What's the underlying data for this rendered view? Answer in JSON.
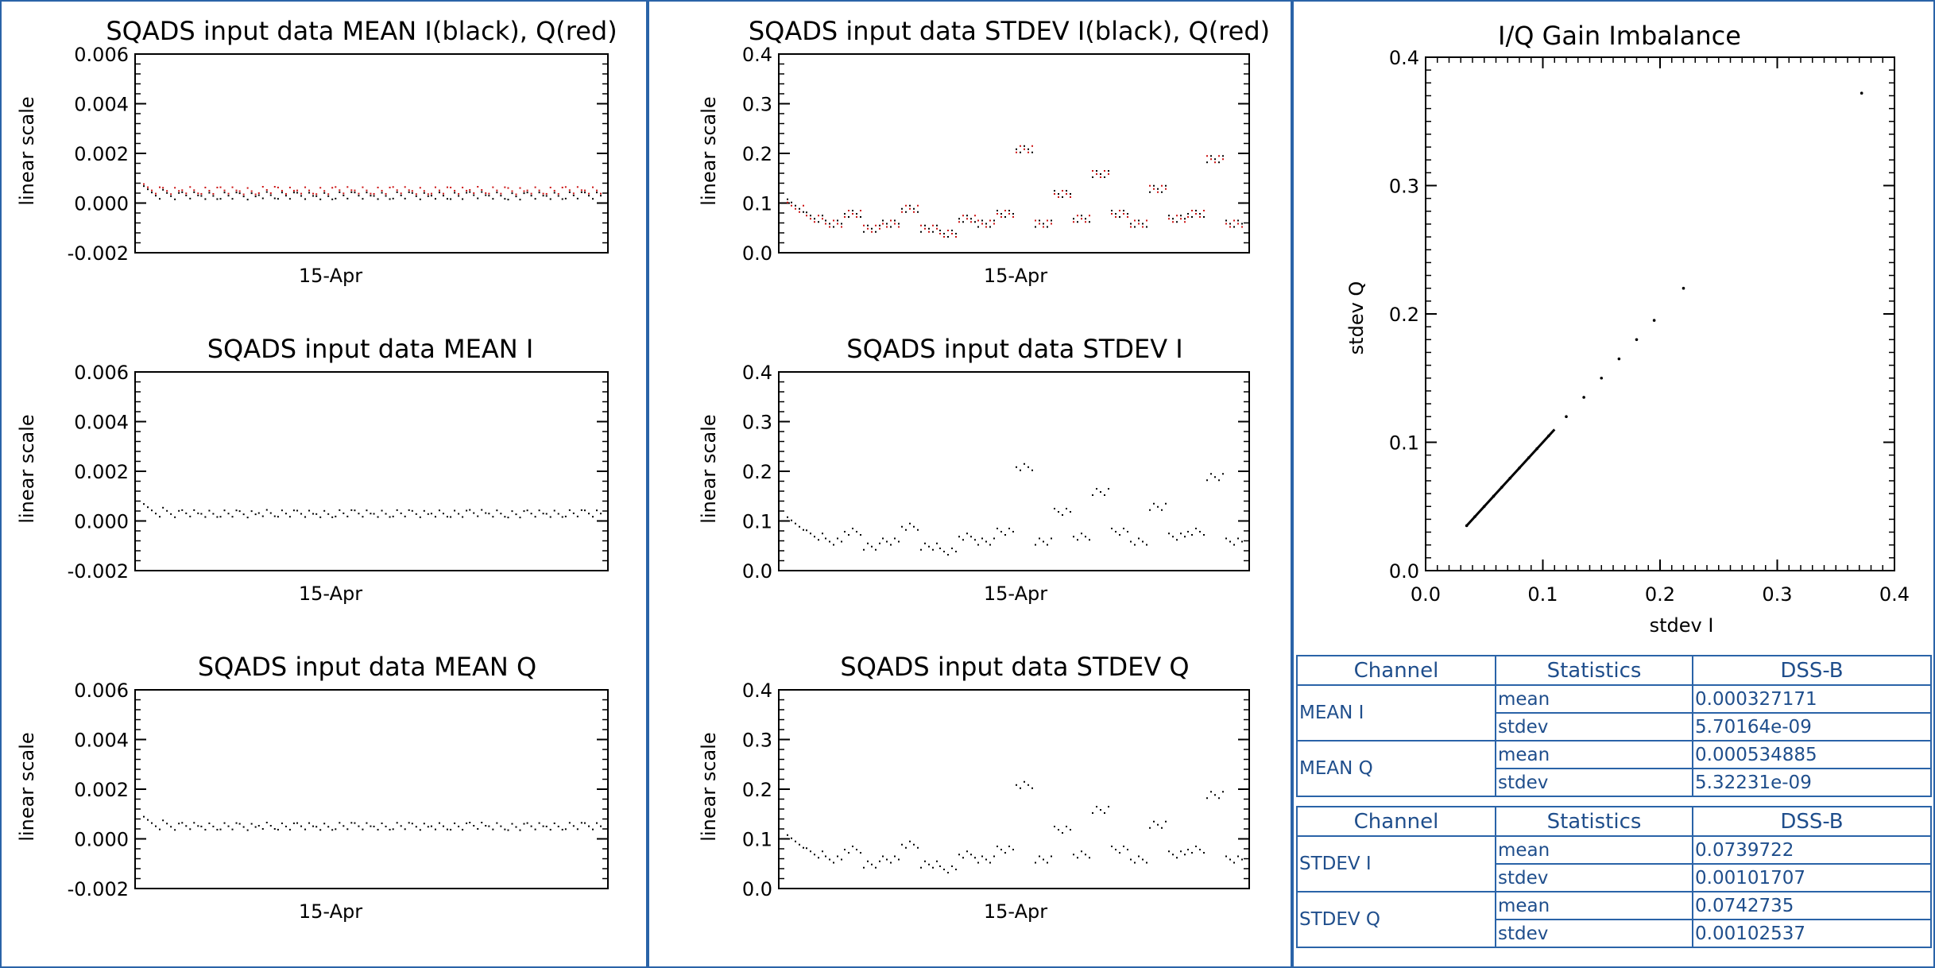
{
  "chart_data": [
    {
      "id": "mean_iq",
      "type": "scatter",
      "title": "SQADS input data MEAN I(black), Q(red)",
      "xlabel": "15-Apr",
      "ylabel": "linear scale",
      "ylim": [
        -0.002,
        0.006
      ],
      "yticks": [
        "-0.002",
        "0.000",
        "0.002",
        "0.004",
        "0.006"
      ],
      "series": [
        {
          "name": "I",
          "color": "#000000",
          "values": [
            0.00033,
            0.00031,
            0.00034,
            0.00032,
            0.00033,
            0.0003,
            0.00035,
            0.00033,
            0.00032,
            0.00031,
            0.00034,
            0.00033,
            0.00032,
            0.00034,
            0.00031,
            0.00033,
            0.00032,
            0.00035,
            0.00033,
            0.0003,
            0.00033,
            0.00032,
            0.00034,
            0.00033
          ]
        },
        {
          "name": "Q",
          "color": "#cc1111",
          "values": [
            0.00054,
            0.00052,
            0.00055,
            0.00053,
            0.00054,
            0.00051,
            0.00056,
            0.00053,
            0.00054,
            0.00052,
            0.00055,
            0.00054,
            0.00053,
            0.00055,
            0.00052,
            0.00054,
            0.00053,
            0.00056,
            0.00054,
            0.00051,
            0.00054,
            0.00053,
            0.00055,
            0.00054
          ]
        }
      ]
    },
    {
      "id": "mean_i",
      "type": "scatter",
      "title": "SQADS input data MEAN I",
      "xlabel": "15-Apr",
      "ylabel": "linear scale",
      "ylim": [
        -0.002,
        0.006
      ],
      "yticks": [
        "-0.002",
        "0.000",
        "0.002",
        "0.004",
        "0.006"
      ],
      "series": [
        {
          "color": "#000000",
          "values": [
            0.00033,
            0.00031,
            0.00034,
            0.00032,
            0.00033,
            0.0003,
            0.00035,
            0.00033,
            0.00032,
            0.00031,
            0.00034,
            0.00033,
            0.00032,
            0.00034,
            0.00031,
            0.00033,
            0.00032,
            0.00035,
            0.00033,
            0.0003,
            0.00033,
            0.00032,
            0.00034,
            0.00033
          ]
        }
      ]
    },
    {
      "id": "mean_q",
      "type": "scatter",
      "title": "SQADS input data MEAN Q",
      "xlabel": "15-Apr",
      "ylabel": "linear scale",
      "ylim": [
        -0.002,
        0.006
      ],
      "yticks": [
        "-0.002",
        "0.000",
        "0.002",
        "0.004",
        "0.006"
      ],
      "series": [
        {
          "color": "#000000",
          "values": [
            0.00054,
            0.00052,
            0.00055,
            0.00053,
            0.00054,
            0.00051,
            0.00056,
            0.00053,
            0.00054,
            0.00052,
            0.00055,
            0.00054,
            0.00053,
            0.00055,
            0.00052,
            0.00054,
            0.00053,
            0.00056,
            0.00054,
            0.00051,
            0.00054,
            0.00053,
            0.00055,
            0.00054
          ]
        }
      ]
    },
    {
      "id": "stdev_iq",
      "type": "scatter",
      "title": "SQADS input data STDEV I(black), Q(red)",
      "xlabel": "15-Apr",
      "ylabel": "linear scale",
      "ylim": [
        0.0,
        0.4
      ],
      "yticks": [
        "0.0",
        "0.1",
        "0.2",
        "0.3",
        "0.4"
      ],
      "series": [
        {
          "name": "I",
          "color": "#000000",
          "values": [
            0.09,
            0.07,
            0.06,
            0.08,
            0.05,
            0.06,
            0.09,
            0.05,
            0.04,
            0.07,
            0.06,
            0.08,
            0.21,
            0.06,
            0.12,
            0.07,
            0.16,
            0.08,
            0.06,
            0.13,
            0.07,
            0.08,
            0.19,
            0.06
          ]
        },
        {
          "name": "Q",
          "color": "#cc1111",
          "values": [
            0.09,
            0.07,
            0.06,
            0.08,
            0.05,
            0.06,
            0.09,
            0.05,
            0.04,
            0.07,
            0.06,
            0.08,
            0.21,
            0.06,
            0.12,
            0.07,
            0.16,
            0.08,
            0.06,
            0.13,
            0.07,
            0.08,
            0.19,
            0.06
          ]
        }
      ]
    },
    {
      "id": "stdev_i",
      "type": "scatter",
      "title": "SQADS input data STDEV I",
      "xlabel": "15-Apr",
      "ylabel": "linear scale",
      "ylim": [
        0.0,
        0.4
      ],
      "yticks": [
        "0.0",
        "0.1",
        "0.2",
        "0.3",
        "0.4"
      ],
      "series": [
        {
          "color": "#000000",
          "values": [
            0.09,
            0.07,
            0.06,
            0.08,
            0.05,
            0.06,
            0.09,
            0.05,
            0.04,
            0.07,
            0.06,
            0.08,
            0.21,
            0.06,
            0.12,
            0.07,
            0.16,
            0.08,
            0.06,
            0.13,
            0.07,
            0.08,
            0.19,
            0.06
          ]
        }
      ]
    },
    {
      "id": "stdev_q",
      "type": "scatter",
      "title": "SQADS input data STDEV Q",
      "xlabel": "15-Apr",
      "ylabel": "linear scale",
      "ylim": [
        0.0,
        0.4
      ],
      "yticks": [
        "0.0",
        "0.1",
        "0.2",
        "0.3",
        "0.4"
      ],
      "series": [
        {
          "color": "#000000",
          "values": [
            0.09,
            0.07,
            0.06,
            0.08,
            0.05,
            0.06,
            0.09,
            0.05,
            0.04,
            0.07,
            0.06,
            0.08,
            0.21,
            0.06,
            0.12,
            0.07,
            0.16,
            0.08,
            0.06,
            0.13,
            0.07,
            0.08,
            0.19,
            0.06
          ]
        }
      ]
    },
    {
      "id": "gain_imbalance",
      "type": "scatter",
      "title": "I/Q Gain Imbalance",
      "xlabel": "stdev I",
      "ylabel": "stdev Q",
      "xlim": [
        0.0,
        0.4
      ],
      "ylim": [
        0.0,
        0.4
      ],
      "xticks": [
        "0.0",
        "0.1",
        "0.2",
        "0.3",
        "0.4"
      ],
      "yticks": [
        "0.0",
        "0.1",
        "0.2",
        "0.3",
        "0.4"
      ],
      "x": [
        0.035,
        0.042,
        0.05,
        0.058,
        0.065,
        0.072,
        0.08,
        0.088,
        0.095,
        0.105,
        0.12,
        0.135,
        0.15,
        0.165,
        0.18,
        0.195,
        0.22,
        0.372
      ],
      "y": [
        0.035,
        0.042,
        0.05,
        0.058,
        0.065,
        0.072,
        0.08,
        0.088,
        0.095,
        0.105,
        0.12,
        0.135,
        0.15,
        0.165,
        0.18,
        0.195,
        0.22,
        0.372
      ]
    }
  ],
  "stats_table": {
    "headers": [
      "Channel",
      "Statistics",
      "DSS-B"
    ],
    "groups": [
      {
        "channel": "MEAN I",
        "rows": [
          {
            "stat": "mean",
            "value": "0.000327171"
          },
          {
            "stat": "stdev",
            "value": "5.70164e-09"
          }
        ]
      },
      {
        "channel": "MEAN Q",
        "rows": [
          {
            "stat": "mean",
            "value": "0.000534885"
          },
          {
            "stat": "stdev",
            "value": "5.32231e-09"
          }
        ]
      }
    ],
    "groups2": [
      {
        "channel": "STDEV I",
        "rows": [
          {
            "stat": "mean",
            "value": "0.0739722"
          },
          {
            "stat": "stdev",
            "value": "0.00101707"
          }
        ]
      },
      {
        "channel": "STDEV Q",
        "rows": [
          {
            "stat": "mean",
            "value": "0.0742735"
          },
          {
            "stat": "stdev",
            "value": "0.00102537"
          }
        ]
      }
    ]
  }
}
